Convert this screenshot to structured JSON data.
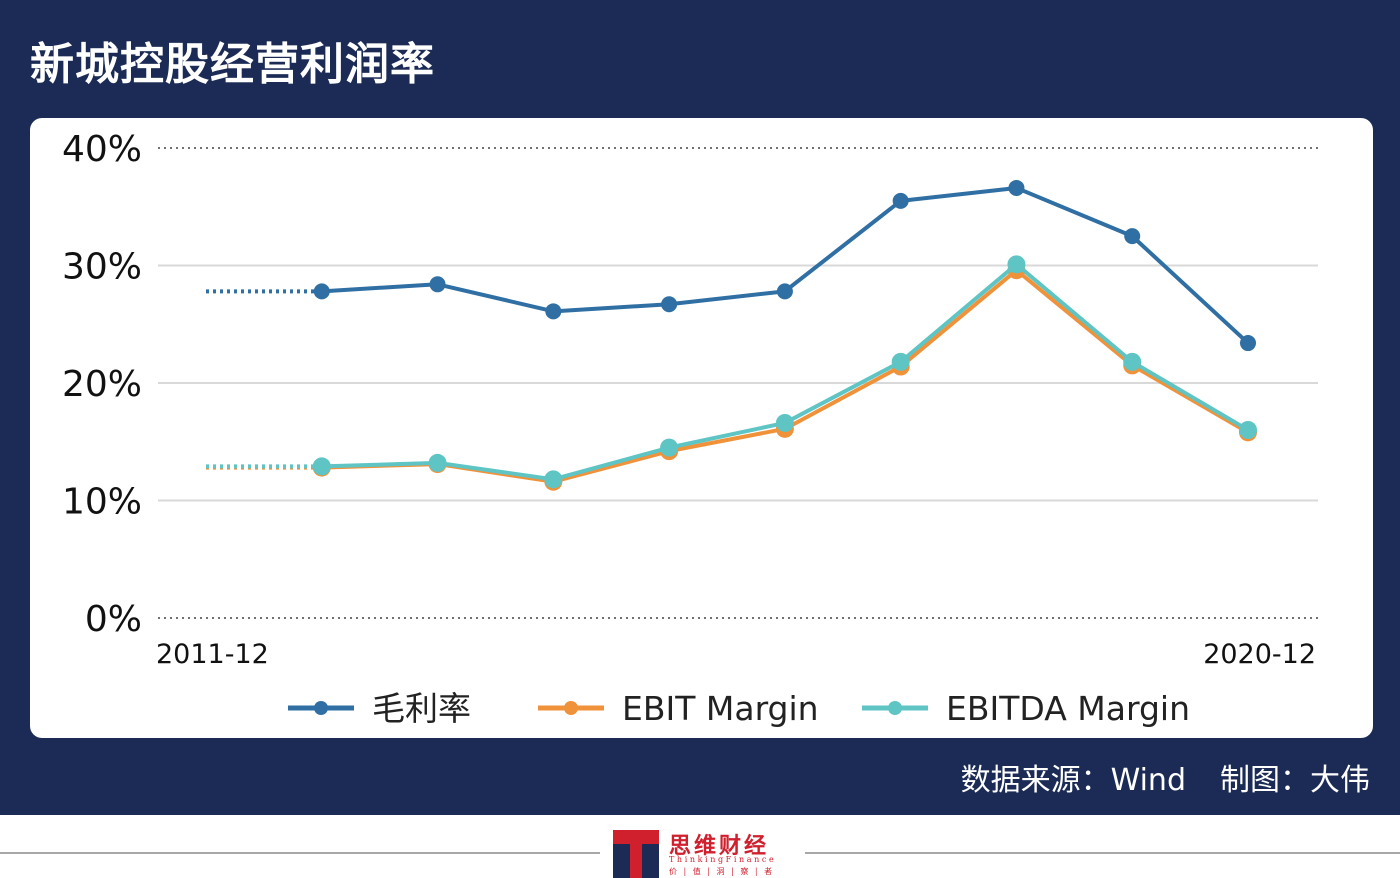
{
  "title": "新城控股经营利润率",
  "credit": {
    "source": "数据来源：Wind",
    "author": "制图：大伟"
  },
  "logo": {
    "name_cn": "思维财经",
    "name_en": "ThinkingFinance",
    "tagline": "价 | 值 | 洞 | 察 | 者"
  },
  "colors": {
    "frame": "#1b2b55",
    "gross_margin": "#2f6fa3",
    "ebit_margin": "#f0923a",
    "ebitda_margin": "#5ec4c4"
  },
  "chart_data": {
    "type": "line",
    "title": "",
    "xlabel": "",
    "ylabel": "",
    "x_tick_labels": [
      "2011-12",
      "2020-12"
    ],
    "x": [
      "2011-12",
      "2012-12",
      "2013-12",
      "2014-12",
      "2015-12",
      "2016-12",
      "2017-12",
      "2018-12",
      "2019-12",
      "2020-12"
    ],
    "ylim": [
      0,
      40
    ],
    "y_ticks": [
      "0%",
      "10%",
      "20%",
      "30%",
      "40%"
    ],
    "grid": true,
    "legend_position": "bottom",
    "series": [
      {
        "name": "毛利率",
        "color": "#2f6fa3",
        "values": [
          27.8,
          27.8,
          28.4,
          26.1,
          26.7,
          27.8,
          35.5,
          36.6,
          32.5,
          23.4
        ],
        "dotted_first_segment": true
      },
      {
        "name": "EBIT Margin",
        "color": "#f0923a",
        "values": [
          12.8,
          12.8,
          13.1,
          11.6,
          14.2,
          16.1,
          21.4,
          29.6,
          21.5,
          15.8
        ],
        "dotted_first_segment": true
      },
      {
        "name": "EBITDA Margin",
        "color": "#5ec4c4",
        "values": [
          12.9,
          12.9,
          13.2,
          11.8,
          14.5,
          16.6,
          21.8,
          30.1,
          21.8,
          16.0
        ],
        "dotted_first_segment": true
      }
    ]
  }
}
